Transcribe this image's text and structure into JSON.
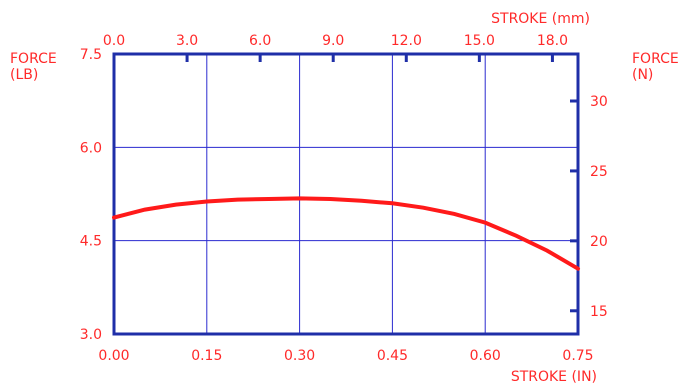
{
  "colors": {
    "frame": "#1f2fa8",
    "grid": "#2a2acf",
    "text": "#ff2a2a",
    "curve": "#ff1a1a"
  },
  "chart_data": {
    "type": "line",
    "grid": true,
    "x_bottom": {
      "label": "STROKE (IN)",
      "range": [
        0,
        0.75
      ],
      "ticks": [
        "0.00",
        "0.15",
        "0.30",
        "0.45",
        "0.60",
        "0.75"
      ]
    },
    "x_top": {
      "label": "STROKE (mm)",
      "range_mm": [
        0,
        19.05
      ],
      "ticks": [
        "0.0",
        "3.0",
        "6.0",
        "9.0",
        "12.0",
        "15.0",
        "18.0"
      ]
    },
    "y_left": {
      "label": "FORCE (LB)",
      "range": [
        3.0,
        7.5
      ],
      "ticks": [
        "3.0",
        "4.5",
        "6.0",
        "7.5"
      ]
    },
    "y_right": {
      "label": "FORCE (N)",
      "range_n": [
        13.34,
        33.36
      ],
      "ticks": [
        "15",
        "20",
        "25",
        "30"
      ]
    },
    "series": [
      {
        "x": [
          0.0,
          0.05,
          0.1,
          0.15,
          0.2,
          0.25,
          0.3,
          0.35,
          0.4,
          0.45,
          0.5,
          0.55,
          0.6,
          0.65,
          0.7,
          0.75
        ],
        "y": [
          4.87,
          5.0,
          5.08,
          5.13,
          5.16,
          5.17,
          5.18,
          5.17,
          5.14,
          5.1,
          5.03,
          4.93,
          4.79,
          4.58,
          4.34,
          4.05
        ]
      }
    ]
  }
}
